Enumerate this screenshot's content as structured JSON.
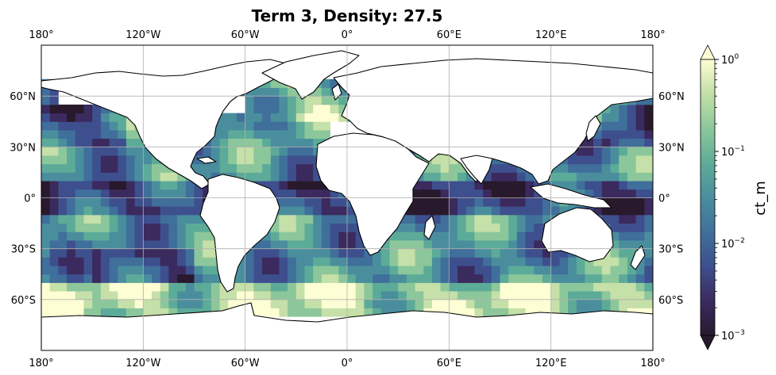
{
  "title": "Term 3, Density: 27.5",
  "map": {
    "projection": "PlateCarree",
    "lon_range": [
      -180,
      180
    ],
    "lat_range": [
      -90,
      90
    ],
    "gridlines": true,
    "lon_ticks": [
      {
        "value": -180,
        "label": "180°"
      },
      {
        "value": -120,
        "label": "120°W"
      },
      {
        "value": -60,
        "label": "60°W"
      },
      {
        "value": 0,
        "label": "0°"
      },
      {
        "value": 60,
        "label": "60°E"
      },
      {
        "value": 120,
        "label": "120°E"
      },
      {
        "value": 180,
        "label": "180°"
      }
    ],
    "lat_ticks": [
      {
        "value": 60,
        "label": "60°N"
      },
      {
        "value": 30,
        "label": "30°N"
      },
      {
        "value": 0,
        "label": "0°"
      },
      {
        "value": -30,
        "label": "30°S"
      },
      {
        "value": -60,
        "label": "60°S"
      }
    ],
    "field": "ct_m gridded values, ocean at isopycnal 27.5 (continents blank)"
  },
  "colorbar": {
    "label": "ct_m",
    "scale": "log",
    "range": [
      0.001,
      1
    ],
    "extend": "both",
    "colormap": "deep-like (dark purple → blue → teal → green → pale yellow)",
    "ticks": [
      {
        "value": 1,
        "base": "10",
        "exp": "0"
      },
      {
        "value": 0.1,
        "base": "10",
        "exp": "−1"
      },
      {
        "value": 0.01,
        "base": "10",
        "exp": "−2"
      },
      {
        "value": 0.001,
        "base": "10",
        "exp": "−3"
      }
    ],
    "colors": [
      "#281a2c",
      "#3b2a5e",
      "#3e4f8e",
      "#3f6f9a",
      "#4a8e9e",
      "#5cab98",
      "#8cc79b",
      "#c5e0a8",
      "#fdfed4"
    ]
  }
}
